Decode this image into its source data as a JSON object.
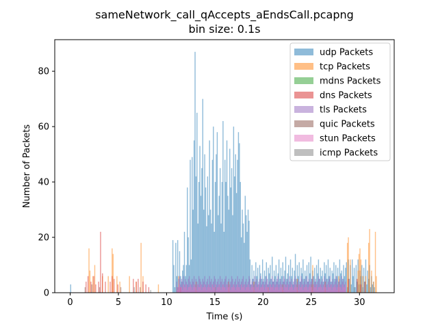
{
  "chart_data": {
    "type": "histogram",
    "title_line1": "sameNetwork_call_qAccepts_aEndsCall.pcapng",
    "title_line2": "bin size: 0.1s",
    "xlabel": "Time (s)",
    "ylabel": "Number of Packets",
    "xlim": [
      -1.6,
      33.6
    ],
    "ylim": [
      0,
      91.4
    ],
    "bin_size": 0.1,
    "x_ticks": [
      0,
      5,
      10,
      15,
      20,
      25,
      30
    ],
    "x_tick_labels": [
      "0",
      "5",
      "10",
      "15",
      "20",
      "25",
      "30"
    ],
    "y_ticks": [
      0,
      20,
      40,
      60,
      80
    ],
    "y_tick_labels": [
      "0",
      "20",
      "40",
      "60",
      "80"
    ],
    "grid": false,
    "legend_position": "upper right",
    "alpha": 0.5,
    "series": [
      {
        "name": "udp Packets",
        "color": "#1f77b4",
        "segments": [
          {
            "x0": 0.0,
            "x1": 0.1,
            "v": [
              3
            ]
          },
          {
            "x0": 10.6,
            "x1": 18.6,
            "v": [
              19,
              10,
              2,
              18,
              6,
              19,
              2,
              15,
              6,
              4,
              8,
              10,
              22,
              6,
              10,
              38,
              20,
              10,
              48,
              12,
              49,
              30,
              55,
              87,
              42,
              65,
              25,
              40,
              53,
              35,
              45,
              70,
              30,
              50,
              38,
              24,
              42,
              28,
              55,
              30,
              25,
              48,
              60,
              22,
              40,
              50,
              58,
              28,
              35,
              45,
              25,
              40,
              62,
              22,
              48,
              40,
              55,
              35,
              30,
              52,
              38,
              45,
              28,
              60,
              42,
              50,
              36,
              48,
              58,
              54,
              40,
              20,
              30,
              25,
              18,
              35,
              28,
              22,
              30,
              26
            ]
          },
          {
            "x0": 18.6,
            "x1": 28.6,
            "v": [
              12,
              3,
              10,
              5,
              8,
              4,
              11,
              6,
              9,
              3,
              10,
              7,
              5,
              12,
              4,
              8,
              6,
              11,
              3,
              9,
              7,
              10,
              5,
              13,
              4,
              8,
              6,
              10,
              4,
              7,
              12,
              5,
              9,
              6,
              11,
              4,
              8,
              13,
              5,
              7,
              10,
              4,
              12,
              6,
              9,
              3,
              8,
              14,
              5,
              10,
              6,
              11,
              4,
              9,
              7,
              12,
              5,
              8,
              6,
              10,
              4,
              11,
              7,
              13,
              5,
              8,
              6,
              9,
              4,
              10,
              7,
              12,
              5,
              9,
              6,
              8,
              4,
              11,
              7,
              10,
              5,
              12,
              6,
              9,
              4,
              8,
              7,
              11,
              5,
              10,
              6,
              9,
              4,
              12,
              7,
              8,
              5,
              10,
              6,
              9
            ]
          },
          {
            "x0": 28.6,
            "x1": 31.6,
            "v": [
              11,
              2,
              12,
              5,
              10,
              3,
              12,
              6,
              9,
              2,
              10,
              4,
              12,
              3,
              8,
              6,
              10,
              2,
              9,
              4,
              12,
              3,
              8,
              5,
              10,
              2,
              6,
              3,
              4,
              2
            ]
          }
        ]
      },
      {
        "name": "tcp Packets",
        "color": "#ff7f0e",
        "spikes": [
          [
            1.9,
            16
          ],
          [
            2.0,
            8
          ],
          [
            2.3,
            6
          ],
          [
            2.5,
            10
          ],
          [
            3.3,
            6
          ],
          [
            3.9,
            6
          ],
          [
            4.3,
            16
          ],
          [
            4.4,
            14
          ],
          [
            4.8,
            6
          ],
          [
            5.1,
            4
          ],
          [
            6.1,
            6
          ],
          [
            6.8,
            4
          ],
          [
            7.3,
            18
          ],
          [
            7.5,
            6
          ],
          [
            9.1,
            3
          ],
          [
            11.2,
            6
          ],
          [
            13.0,
            4
          ],
          [
            16.4,
            4
          ],
          [
            19.0,
            4
          ],
          [
            20.5,
            2
          ],
          [
            22.0,
            3
          ],
          [
            23.5,
            5
          ],
          [
            25.0,
            3
          ],
          [
            25.1,
            10
          ],
          [
            26.4,
            4
          ],
          [
            27.8,
            6
          ],
          [
            28.7,
            18
          ],
          [
            28.8,
            20
          ],
          [
            29.0,
            12
          ],
          [
            29.8,
            8
          ],
          [
            29.9,
            14
          ],
          [
            30.0,
            16
          ],
          [
            30.1,
            12
          ],
          [
            30.3,
            6
          ],
          [
            30.6,
            6
          ],
          [
            30.9,
            18
          ],
          [
            31.0,
            23
          ],
          [
            31.2,
            8
          ],
          [
            31.4,
            4
          ],
          [
            31.6,
            22
          ],
          [
            31.7,
            6
          ]
        ]
      },
      {
        "name": "mdns Packets",
        "color": "#2ca02c",
        "spikes": [
          [
            11.0,
            2
          ],
          [
            15.0,
            2
          ]
        ]
      },
      {
        "name": "dns Packets",
        "color": "#d62728",
        "spikes": [
          [
            1.6,
            4
          ],
          [
            1.8,
            6
          ],
          [
            2.1,
            4
          ],
          [
            2.4,
            6
          ],
          [
            2.6,
            3
          ],
          [
            2.9,
            4
          ],
          [
            3.1,
            22
          ],
          [
            3.3,
            7
          ],
          [
            3.6,
            4
          ],
          [
            4.1,
            4
          ],
          [
            4.3,
            6
          ],
          [
            4.5,
            5
          ],
          [
            4.9,
            3
          ],
          [
            6.5,
            5
          ],
          [
            6.8,
            4
          ],
          [
            7.0,
            5
          ],
          [
            7.5,
            4
          ],
          [
            7.8,
            3
          ],
          [
            8.1,
            2
          ],
          [
            11.4,
            2
          ],
          [
            28.8,
            5
          ],
          [
            29.7,
            5
          ],
          [
            30.1,
            3
          ],
          [
            30.5,
            4
          ]
        ]
      },
      {
        "name": "tls Packets",
        "color": "#9467bd",
        "segments": [
          {
            "x0": 11.0,
            "x1": 28.6,
            "v": [
              4,
              2,
              5,
              6,
              3,
              5,
              4,
              6,
              3,
              5,
              4,
              3,
              5,
              6,
              4,
              3,
              5,
              4,
              6,
              3,
              5,
              4,
              3,
              6,
              5,
              4,
              3,
              5,
              4,
              6,
              3,
              4,
              5,
              3,
              6,
              4,
              5,
              3,
              4,
              6,
              5,
              3,
              4,
              5,
              3,
              6,
              4,
              5,
              3,
              4,
              5,
              6,
              3,
              4,
              5,
              3,
              4,
              6,
              5,
              3,
              4,
              5,
              3,
              6,
              4,
              5,
              3,
              4,
              5,
              6,
              3,
              4,
              5,
              3,
              4,
              6,
              5,
              3,
              4,
              5,
              3,
              6,
              4,
              5,
              3,
              4,
              5,
              6,
              3,
              4,
              5,
              3,
              4,
              6,
              5,
              3,
              4,
              5,
              3,
              6,
              4,
              5,
              3,
              4,
              5,
              6,
              3,
              4,
              5,
              3,
              4,
              6,
              5,
              3,
              4,
              5,
              3,
              6,
              4,
              5,
              3,
              4,
              5,
              6,
              3,
              4,
              5,
              3,
              4,
              6,
              5,
              3,
              4,
              5,
              3,
              6,
              4,
              5,
              3,
              4,
              5,
              6,
              3,
              4,
              5,
              3,
              4,
              6,
              5,
              3,
              4,
              5,
              3,
              6,
              4,
              5,
              3,
              4,
              5,
              6,
              3,
              4,
              5,
              3,
              4,
              6,
              5,
              3,
              4,
              5,
              3,
              6,
              4,
              5,
              3,
              4
            ]
          }
        ]
      },
      {
        "name": "quic Packets",
        "color": "#8c564b",
        "spikes": [
          [
            1.5,
            2
          ],
          [
            2.2,
            3
          ],
          [
            3.0,
            2
          ],
          [
            5.2,
            2
          ],
          [
            7.2,
            2
          ]
        ]
      },
      {
        "name": "stun Packets",
        "color": "#e377c2",
        "segments": [
          {
            "x0": 11.0,
            "x1": 28.6,
            "v": [
              2,
              1,
              2,
              3,
              2,
              2,
              1,
              3,
              2,
              2,
              3,
              1,
              2,
              2,
              3,
              2,
              1,
              2,
              3,
              2,
              2,
              1,
              3,
              2,
              2,
              3,
              1,
              2,
              2,
              3,
              2,
              1,
              2,
              3,
              2,
              2,
              1,
              3,
              2,
              2,
              3,
              1,
              2,
              2,
              3,
              2,
              1,
              2,
              3,
              2,
              2,
              1,
              3,
              2,
              2,
              3,
              1,
              2,
              2,
              3,
              2,
              1,
              2,
              3,
              2,
              2,
              1,
              3,
              2,
              2,
              3,
              1,
              2,
              2,
              3,
              2,
              1,
              2,
              3,
              2,
              2,
              1,
              3,
              2,
              2,
              3,
              1,
              2,
              2,
              3,
              2,
              1,
              2,
              3,
              2,
              2,
              1,
              3,
              2,
              2,
              3,
              1,
              2,
              2,
              3,
              2,
              1,
              2,
              3,
              2,
              2,
              1,
              3,
              2,
              2,
              3,
              1,
              2,
              2,
              3,
              2,
              1,
              2,
              3,
              2,
              2,
              1,
              3,
              2,
              2,
              3,
              1,
              2,
              2,
              3,
              2,
              1,
              2,
              3,
              2,
              2,
              1,
              3,
              2,
              2,
              3,
              1,
              2,
              2,
              3,
              2,
              1,
              2,
              3,
              2,
              2,
              1,
              3,
              2,
              2,
              3,
              1,
              2,
              2,
              3,
              2,
              1,
              2,
              3,
              2,
              2,
              1,
              3,
              2,
              2,
              3
            ]
          }
        ]
      },
      {
        "name": "icmp Packets",
        "color": "#7f7f7f",
        "spikes": [
          [
            6.6,
            2
          ],
          [
            8.3,
            1
          ],
          [
            29.4,
            2
          ]
        ]
      }
    ]
  }
}
